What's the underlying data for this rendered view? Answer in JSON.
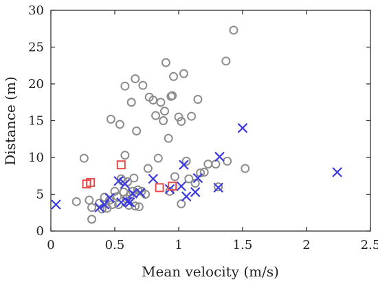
{
  "chart_data": {
    "type": "scatter",
    "xlabel": "Mean velocity (m/s)",
    "ylabel": "Distance (m)",
    "xlim": [
      0,
      2.5
    ],
    "ylim": [
      0,
      30
    ],
    "xticks": [
      "0",
      "0.5",
      "1",
      "1.5",
      "2",
      "2.5"
    ],
    "yticks": [
      "0",
      "5",
      "10",
      "15",
      "20",
      "25",
      "30"
    ],
    "grid": false,
    "series": [
      {
        "marker": "circle",
        "color": "#8c8c8c",
        "points": [
          [
            0.26,
            9.9
          ],
          [
            0.2,
            4.0
          ],
          [
            0.3,
            4.2
          ],
          [
            0.32,
            3.2
          ],
          [
            0.32,
            1.6
          ],
          [
            0.38,
            3.8
          ],
          [
            0.4,
            3.0
          ],
          [
            0.42,
            4.6
          ],
          [
            0.44,
            3.1
          ],
          [
            0.46,
            4.2
          ],
          [
            0.47,
            15.2
          ],
          [
            0.48,
            3.6
          ],
          [
            0.5,
            5.4
          ],
          [
            0.52,
            4.7
          ],
          [
            0.53,
            3.6
          ],
          [
            0.54,
            14.5
          ],
          [
            0.55,
            7.1
          ],
          [
            0.56,
            6.8
          ],
          [
            0.57,
            5.3
          ],
          [
            0.58,
            10.3
          ],
          [
            0.58,
            19.7
          ],
          [
            0.59,
            4.4
          ],
          [
            0.6,
            6.7
          ],
          [
            0.61,
            3.5
          ],
          [
            0.62,
            4.9
          ],
          [
            0.63,
            17.5
          ],
          [
            0.64,
            5.4
          ],
          [
            0.65,
            7.2
          ],
          [
            0.66,
            3.4
          ],
          [
            0.66,
            20.7
          ],
          [
            0.67,
            13.6
          ],
          [
            0.68,
            5.6
          ],
          [
            0.69,
            3.3
          ],
          [
            0.71,
            5.4
          ],
          [
            0.72,
            19.8
          ],
          [
            0.74,
            5.0
          ],
          [
            0.76,
            8.5
          ],
          [
            0.77,
            18.2
          ],
          [
            0.8,
            17.8
          ],
          [
            0.82,
            15.7
          ],
          [
            0.84,
            9.9
          ],
          [
            0.86,
            17.5
          ],
          [
            0.88,
            15.0
          ],
          [
            0.89,
            16.3
          ],
          [
            0.9,
            22.9
          ],
          [
            0.92,
            12.6
          ],
          [
            0.93,
            5.4
          ],
          [
            0.94,
            18.3
          ],
          [
            0.95,
            18.4
          ],
          [
            0.96,
            21.0
          ],
          [
            0.97,
            7.4
          ],
          [
            1.0,
            15.5
          ],
          [
            1.02,
            14.9
          ],
          [
            1.02,
            3.7
          ],
          [
            1.04,
            21.4
          ],
          [
            1.06,
            9.5
          ],
          [
            1.08,
            7.1
          ],
          [
            1.1,
            15.6
          ],
          [
            1.13,
            6.5
          ],
          [
            1.15,
            17.9
          ],
          [
            1.17,
            7.9
          ],
          [
            1.2,
            8.0
          ],
          [
            1.23,
            9.1
          ],
          [
            1.29,
            9.1
          ],
          [
            1.31,
            6.0
          ],
          [
            1.38,
            9.5
          ],
          [
            1.43,
            27.3
          ],
          [
            1.37,
            23.1
          ],
          [
            1.52,
            8.5
          ]
        ]
      },
      {
        "marker": "x",
        "color": "#3a3adf",
        "points": [
          [
            0.04,
            3.6
          ],
          [
            0.38,
            3.2
          ],
          [
            0.42,
            3.6
          ],
          [
            0.46,
            4.5
          ],
          [
            0.53,
            6.8
          ],
          [
            0.55,
            3.9
          ],
          [
            0.58,
            6.4
          ],
          [
            0.6,
            4.0
          ],
          [
            0.62,
            3.9
          ],
          [
            0.64,
            5.1
          ],
          [
            0.7,
            5.2
          ],
          [
            0.8,
            7.1
          ],
          [
            0.93,
            5.7
          ],
          [
            1.02,
            6.1
          ],
          [
            1.04,
            9.0
          ],
          [
            1.06,
            4.7
          ],
          [
            1.13,
            5.3
          ],
          [
            1.15,
            7.2
          ],
          [
            1.31,
            5.9
          ],
          [
            1.32,
            10.1
          ],
          [
            1.5,
            14.0
          ],
          [
            2.24,
            8.0
          ]
        ]
      },
      {
        "marker": "square",
        "color": "#e84a4a",
        "points": [
          [
            0.28,
            6.4
          ],
          [
            0.31,
            6.6
          ],
          [
            0.55,
            9.0
          ],
          [
            0.85,
            5.9
          ],
          [
            0.95,
            6.1
          ]
        ]
      }
    ]
  }
}
